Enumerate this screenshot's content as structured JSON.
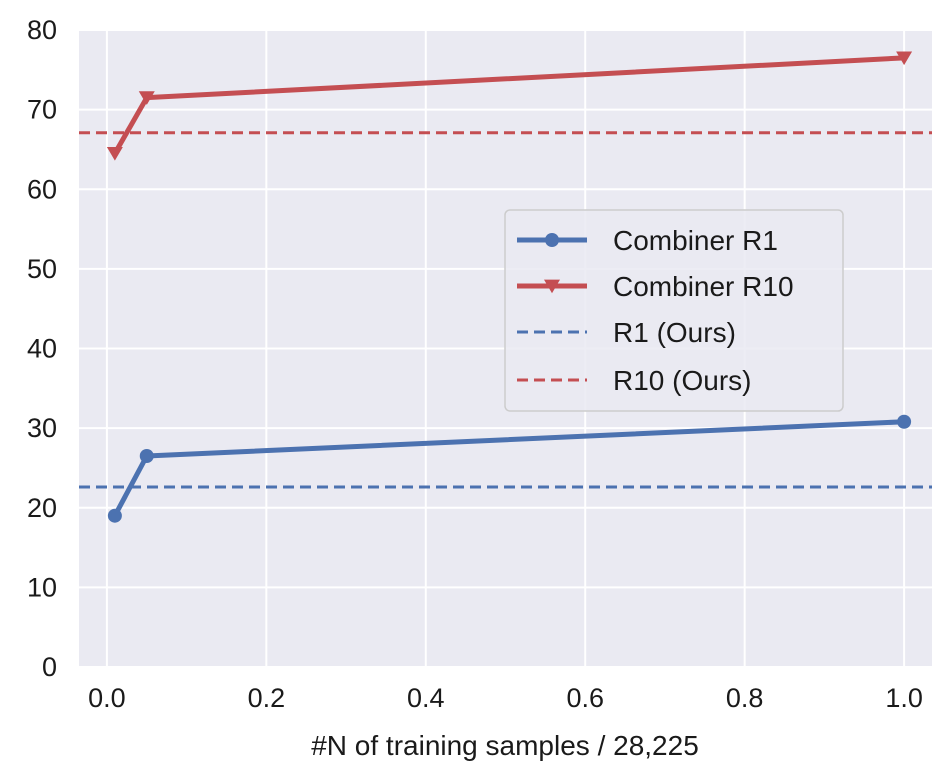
{
  "chart_data": {
    "type": "line",
    "title": "",
    "xlabel": "#N of training samples / 28,225",
    "ylabel": "",
    "xlim": [
      -0.035,
      1.035
    ],
    "ylim": [
      0,
      80
    ],
    "xticks": [
      0.0,
      0.2,
      0.4,
      0.6,
      0.8,
      1.0
    ],
    "xtick_labels": [
      "0.0",
      "0.2",
      "0.4",
      "0.6",
      "0.8",
      "1.0"
    ],
    "yticks": [
      0,
      10,
      20,
      30,
      40,
      50,
      60,
      70,
      80
    ],
    "ytick_labels": [
      "0",
      "10",
      "20",
      "30",
      "40",
      "50",
      "60",
      "70",
      "80"
    ],
    "grid": true,
    "legend_position": "center-right",
    "series": [
      {
        "name": "Combiner R1",
        "style": "solid",
        "marker": "circle",
        "color": "#4c72b0",
        "x": [
          0.01,
          0.05,
          1.0
        ],
        "y": [
          19.0,
          26.5,
          30.8
        ]
      },
      {
        "name": "Combiner R10",
        "style": "solid",
        "marker": "triangle-down",
        "color": "#c44e52",
        "x": [
          0.01,
          0.05,
          1.0
        ],
        "y": [
          64.5,
          71.5,
          76.5
        ]
      },
      {
        "name": "R1 (Ours)",
        "style": "dashed",
        "marker": "none",
        "color": "#4c72b0",
        "y_const": 22.6
      },
      {
        "name": "R10 (Ours)",
        "style": "dashed",
        "marker": "none",
        "color": "#c44e52",
        "y_const": 67.1
      }
    ]
  },
  "colors": {
    "plot_background": "#eaeaf2",
    "grid": "#ffffff",
    "blue": "#4c72b0",
    "red": "#c44e52"
  }
}
